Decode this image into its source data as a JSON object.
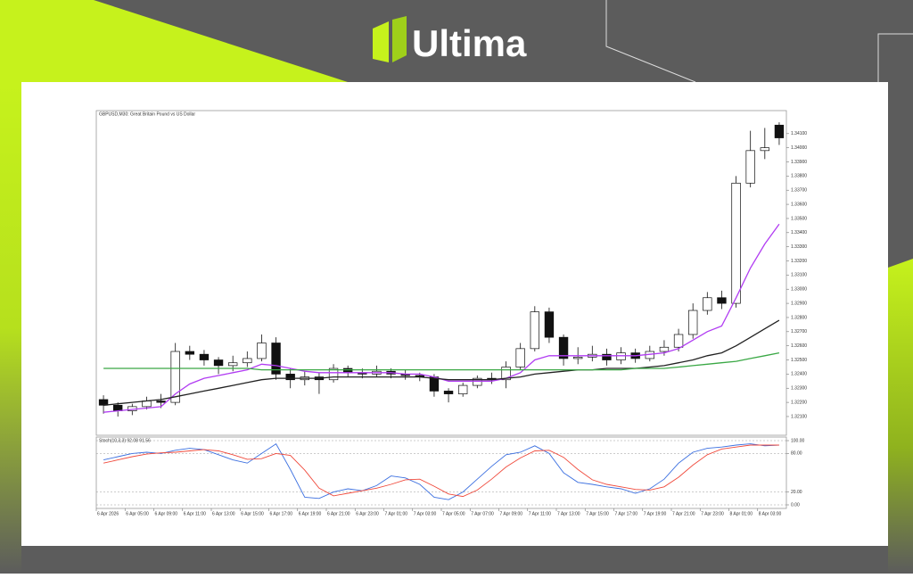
{
  "header": {
    "brand": "Ultima"
  },
  "chart_data": [
    {
      "type": "candlestick",
      "title": "GBPUSD,M30:  Great Britain Pound vs US Dollar",
      "categories": [
        "6 Apr 2026",
        null,
        "6 Apr 05:00",
        null,
        "6 Apr 09:00",
        null,
        "6 Apr 11:00",
        null,
        "6 Apr 13:00",
        null,
        "6 Apr 15:00",
        null,
        "6 Apr 17:00",
        null,
        "6 Apr 19:00",
        null,
        "6 Apr 21:00",
        null,
        "6 Apr 23:00",
        null,
        "7 Apr 01:00",
        null,
        "7 Apr 03:00",
        null,
        "7 Apr 05:00",
        null,
        "7 Apr 07:00",
        null,
        "7 Apr 09:00",
        null,
        "7 Apr 11:00",
        null,
        "7 Apr 13:00",
        null,
        "7 Apr 15:00",
        null,
        "7 Apr 17:00",
        null,
        "7 Apr 19:00",
        null,
        "7 Apr 21:00",
        null,
        "7 Apr 23:00",
        null,
        "8 Apr 01:00",
        null,
        "8 Apr 03:00",
        null
      ],
      "open": [
        1.3222,
        1.3218,
        1.3214,
        1.3217,
        1.3221,
        1.322,
        1.3256,
        1.3254,
        1.325,
        1.3246,
        1.3248,
        1.3251,
        1.3262,
        1.324,
        1.3236,
        1.3238,
        1.3236,
        1.3244,
        1.3241,
        1.324,
        1.3242,
        1.324,
        1.3239,
        1.3238,
        1.3228,
        1.3226,
        1.3232,
        1.3237,
        1.3236,
        1.3245,
        1.3258,
        1.3284,
        1.3266,
        1.3251,
        1.3252,
        1.3254,
        1.325,
        1.3255,
        1.3251,
        1.3256,
        1.3259,
        1.3268,
        1.3285,
        1.3294,
        1.329,
        1.3375,
        1.3398,
        1.3416
      ],
      "high": [
        1.3225,
        1.322,
        1.3219,
        1.3224,
        1.3226,
        1.3262,
        1.326,
        1.3257,
        1.3252,
        1.3253,
        1.3256,
        1.3268,
        1.3266,
        1.3244,
        1.3242,
        1.3241,
        1.3247,
        1.3246,
        1.3244,
        1.3246,
        1.3244,
        1.3243,
        1.3241,
        1.324,
        1.323,
        1.3234,
        1.3239,
        1.3241,
        1.3249,
        1.3262,
        1.3288,
        1.3287,
        1.3268,
        1.3259,
        1.326,
        1.3258,
        1.3259,
        1.3258,
        1.326,
        1.3264,
        1.3272,
        1.329,
        1.3298,
        1.3299,
        1.338,
        1.3412,
        1.3414,
        1.3418
      ],
      "low": [
        1.3212,
        1.321,
        1.3211,
        1.3215,
        1.3216,
        1.3218,
        1.325,
        1.3246,
        1.324,
        1.3242,
        1.3245,
        1.3249,
        1.3236,
        1.323,
        1.3232,
        1.3226,
        1.3234,
        1.3238,
        1.3237,
        1.3238,
        1.3237,
        1.3236,
        1.3235,
        1.3224,
        1.322,
        1.3224,
        1.323,
        1.3233,
        1.323,
        1.3243,
        1.3256,
        1.3262,
        1.3246,
        1.3247,
        1.3249,
        1.3246,
        1.3247,
        1.3248,
        1.3249,
        1.3253,
        1.3256,
        1.3265,
        1.3282,
        1.3286,
        1.3287,
        1.3372,
        1.3392,
        1.3402
      ],
      "close": [
        1.3218,
        1.3214,
        1.3217,
        1.3221,
        1.322,
        1.3256,
        1.3254,
        1.325,
        1.3246,
        1.3248,
        1.3251,
        1.3262,
        1.324,
        1.3236,
        1.3238,
        1.3236,
        1.3244,
        1.3241,
        1.324,
        1.3242,
        1.324,
        1.3239,
        1.3238,
        1.3228,
        1.3226,
        1.3232,
        1.3237,
        1.3236,
        1.3245,
        1.3258,
        1.3284,
        1.3266,
        1.3251,
        1.3252,
        1.3254,
        1.325,
        1.3255,
        1.3251,
        1.3256,
        1.3259,
        1.3268,
        1.3285,
        1.3294,
        1.329,
        1.3375,
        1.3398,
        1.34,
        1.3407
      ],
      "lines": [
        {
          "color": "#b13cf2",
          "values": [
            1.3213,
            1.3214,
            1.3215,
            1.3216,
            1.3217,
            1.3226,
            1.3233,
            1.3237,
            1.3239,
            1.3241,
            1.3243,
            1.3247,
            1.3246,
            1.3244,
            1.3242,
            1.3241,
            1.3241,
            1.3241,
            1.3241,
            1.3241,
            1.3241,
            1.324,
            1.324,
            1.3238,
            1.3235,
            1.3235,
            1.3235,
            1.3235,
            1.3237,
            1.3241,
            1.325,
            1.3253,
            1.3253,
            1.3253,
            1.3253,
            1.3253,
            1.3253,
            1.3253,
            1.3254,
            1.3255,
            1.3258,
            1.3264,
            1.327,
            1.3274,
            1.3294,
            1.3315,
            1.3332,
            1.3346
          ]
        },
        {
          "color": "#222222",
          "values": [
            1.3218,
            1.3219,
            1.322,
            1.3221,
            1.3222,
            1.3224,
            1.3226,
            1.3228,
            1.323,
            1.3232,
            1.3234,
            1.3236,
            1.3237,
            1.3237,
            1.3237,
            1.3237,
            1.3238,
            1.3238,
            1.3238,
            1.3238,
            1.3238,
            1.3238,
            1.3238,
            1.3237,
            1.3236,
            1.3236,
            1.3236,
            1.3236,
            1.3237,
            1.3238,
            1.324,
            1.3241,
            1.3242,
            1.3243,
            1.3243,
            1.3244,
            1.3244,
            1.3244,
            1.3245,
            1.3246,
            1.3248,
            1.325,
            1.3253,
            1.3255,
            1.326,
            1.3266,
            1.3272,
            1.3278
          ]
        },
        {
          "color": "#3aa845",
          "values": [
            1.3244,
            1.3244,
            1.3244,
            1.3244,
            1.3244,
            1.3244,
            1.3244,
            1.3244,
            1.3244,
            1.3244,
            1.3244,
            1.3243,
            1.3243,
            1.3243,
            1.3243,
            1.3243,
            1.3243,
            1.3243,
            1.3243,
            1.3243,
            1.3243,
            1.3243,
            1.3243,
            1.3243,
            1.3243,
            1.3243,
            1.3243,
            1.3243,
            1.3243,
            1.3243,
            1.3243,
            1.3243,
            1.3243,
            1.3243,
            1.3243,
            1.3243,
            1.3243,
            1.3244,
            1.3244,
            1.3244,
            1.3245,
            1.3246,
            1.3247,
            1.3248,
            1.3249,
            1.3251,
            1.3253,
            1.3255
          ]
        }
      ],
      "bull_color": "#ffffff",
      "bear_color": "#111111",
      "ylim": [
        1.3198,
        1.3425
      ],
      "yticks": [
        {
          "value": 1.321,
          "label": "1.32100"
        },
        {
          "value": 1.322,
          "label": "1.32200"
        },
        {
          "value": 1.323,
          "label": "1.32300"
        },
        {
          "value": 1.324,
          "label": "1.32400"
        },
        {
          "value": 1.325,
          "label": "1.32500"
        },
        {
          "value": 1.326,
          "label": "1.32600"
        },
        {
          "value": 1.327,
          "label": "1.32700"
        },
        {
          "value": 1.328,
          "label": "1.32800"
        },
        {
          "value": 1.329,
          "label": "1.32900"
        },
        {
          "value": 1.33,
          "label": "1.33000"
        },
        {
          "value": 1.331,
          "label": "1.33100"
        },
        {
          "value": 1.332,
          "label": "1.33200"
        },
        {
          "value": 1.333,
          "label": "1.33300"
        },
        {
          "value": 1.334,
          "label": "1.33400"
        },
        {
          "value": 1.335,
          "label": "1.33500"
        },
        {
          "value": 1.336,
          "label": "1.33600"
        },
        {
          "value": 1.337,
          "label": "1.33700"
        },
        {
          "value": 1.338,
          "label": "1.33800"
        },
        {
          "value": 1.339,
          "label": "1.33900"
        },
        {
          "value": 1.34,
          "label": "1.34000"
        },
        {
          "value": 1.341,
          "label": "1.34100"
        }
      ]
    },
    {
      "type": "line",
      "title": "Stoch(10,3,3) 92.08 91.56",
      "series": [
        {
          "color": "#3b6fe0",
          "values": [
            70,
            75,
            80,
            82,
            80,
            85,
            88,
            86,
            78,
            70,
            65,
            80,
            95,
            55,
            12,
            10,
            20,
            25,
            22,
            30,
            45,
            42,
            32,
            12,
            8,
            20,
            40,
            60,
            78,
            82,
            92,
            80,
            50,
            35,
            32,
            28,
            25,
            18,
            25,
            40,
            65,
            82,
            88,
            90,
            93,
            95,
            92,
            93
          ]
        },
        {
          "color": "#f04a3c",
          "values": [
            65,
            70,
            75,
            79,
            81,
            82,
            84,
            86,
            84,
            78,
            71,
            72,
            80,
            77,
            54,
            26,
            14,
            18,
            22,
            26,
            32,
            39,
            40,
            29,
            17,
            13,
            23,
            40,
            59,
            73,
            84,
            85,
            74,
            55,
            39,
            32,
            28,
            24,
            23,
            28,
            43,
            62,
            78,
            87,
            90,
            93,
            93,
            93
          ]
        }
      ],
      "ylim": [
        0,
        100
      ],
      "yticks": [
        {
          "value": 0,
          "label": "0.00"
        },
        {
          "value": 20,
          "label": "20.00"
        },
        {
          "value": 80,
          "label": "80.00"
        },
        {
          "value": 100,
          "label": "100.00"
        }
      ],
      "grid": "dashed"
    }
  ]
}
